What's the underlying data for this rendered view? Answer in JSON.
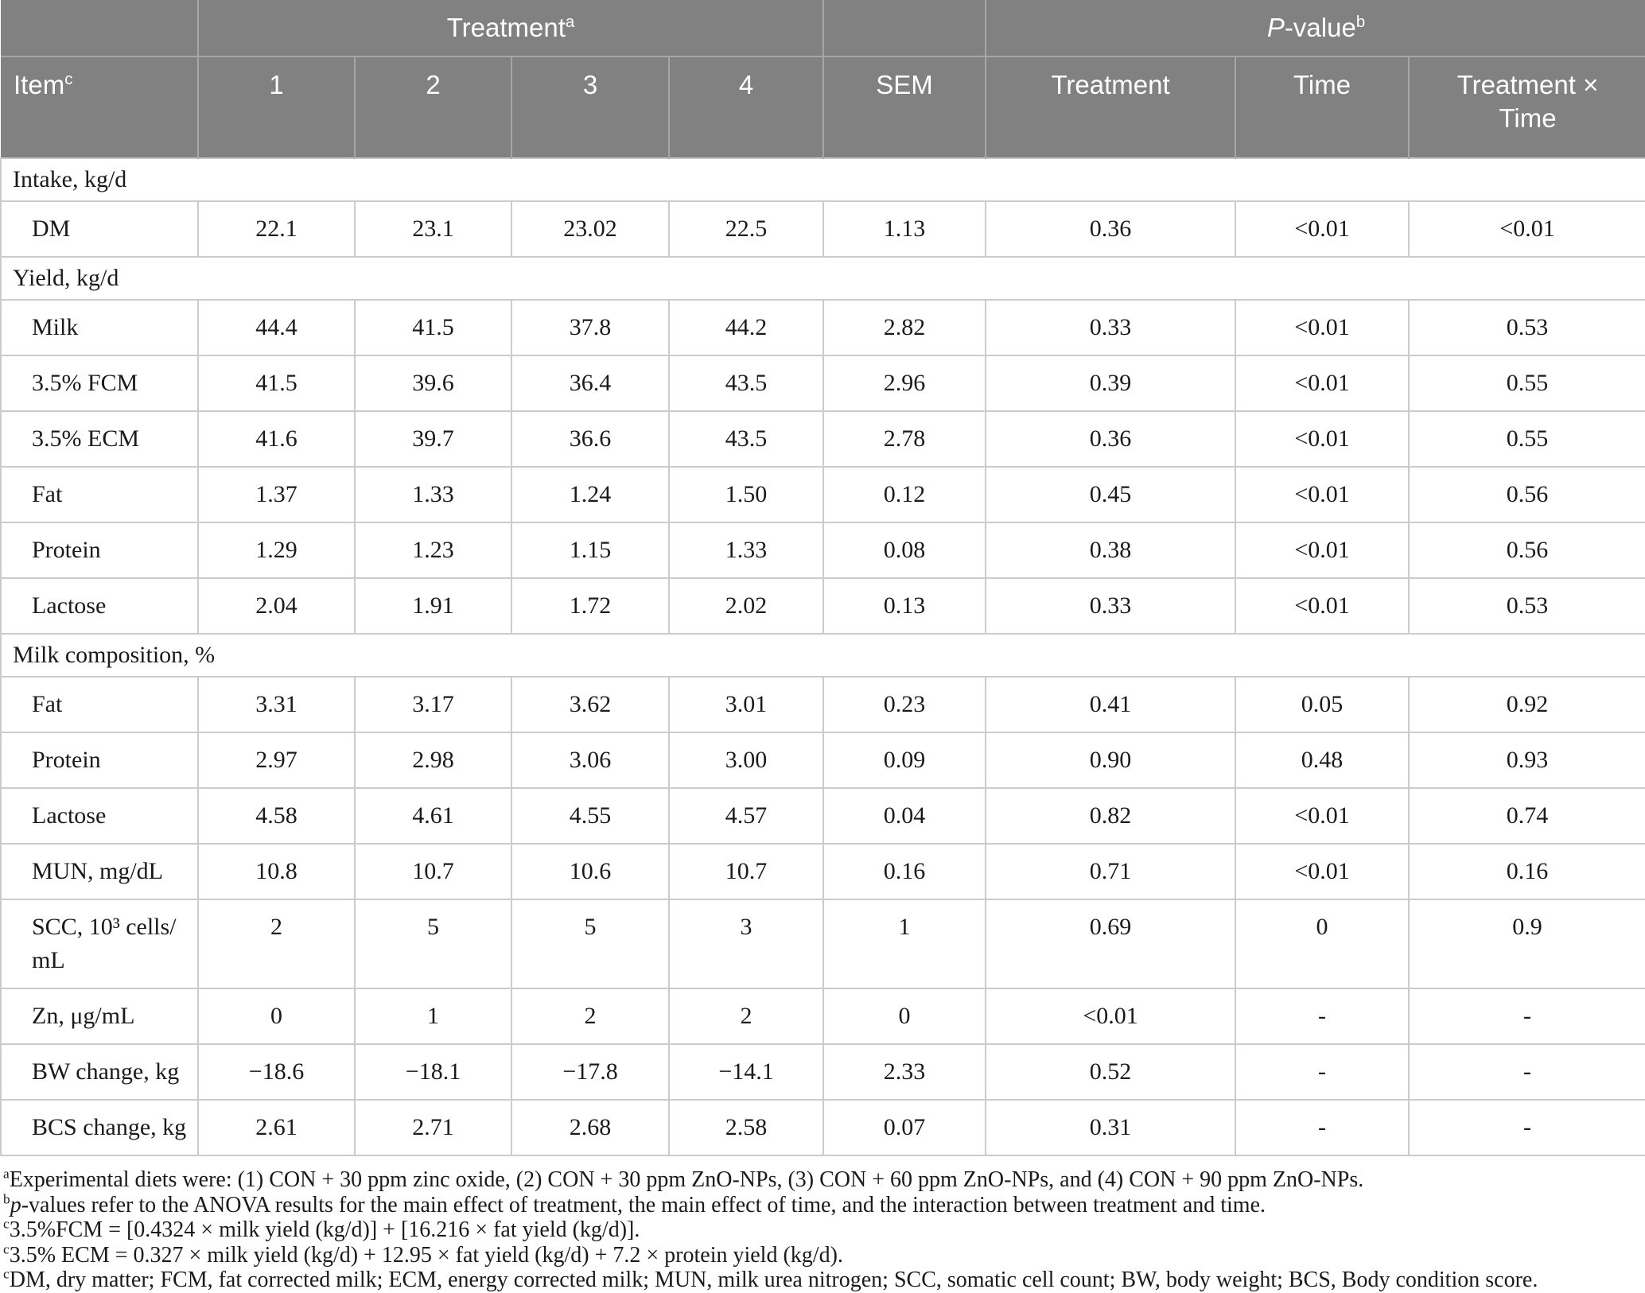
{
  "table": {
    "header": {
      "treatment_group": {
        "label": "Treatment",
        "sup": "a"
      },
      "pvalue_group": {
        "lead": "P",
        "label": "-value",
        "sup": "b"
      },
      "item": {
        "label": "Item",
        "sup": "c"
      },
      "treat_cols": [
        "1",
        "2",
        "3",
        "4"
      ],
      "sem": "SEM",
      "p_treatment": "Treatment",
      "p_time": "Time",
      "p_interaction": "Treatment × Time"
    },
    "rows": [
      {
        "type": "section",
        "label": "Intake, kg/d"
      },
      {
        "type": "data",
        "label": "DM",
        "values": [
          "22.1",
          "23.1",
          "23.02",
          "22.5",
          "1.13",
          "0.36",
          "<0.01",
          "<0.01"
        ]
      },
      {
        "type": "section",
        "label": "Yield, kg/d"
      },
      {
        "type": "data",
        "label": "Milk",
        "values": [
          "44.4",
          "41.5",
          "37.8",
          "44.2",
          "2.82",
          "0.33",
          "<0.01",
          "0.53"
        ]
      },
      {
        "type": "data",
        "label": "3.5% FCM",
        "values": [
          "41.5",
          "39.6",
          "36.4",
          "43.5",
          "2.96",
          "0.39",
          "<0.01",
          "0.55"
        ]
      },
      {
        "type": "data",
        "label": "3.5% ECM",
        "values": [
          "41.6",
          "39.7",
          "36.6",
          "43.5",
          "2.78",
          "0.36",
          "<0.01",
          "0.55"
        ]
      },
      {
        "type": "data",
        "label": "Fat",
        "values": [
          "1.37",
          "1.33",
          "1.24",
          "1.50",
          "0.12",
          "0.45",
          "<0.01",
          "0.56"
        ]
      },
      {
        "type": "data",
        "label": "Protein",
        "values": [
          "1.29",
          "1.23",
          "1.15",
          "1.33",
          "0.08",
          "0.38",
          "<0.01",
          "0.56"
        ]
      },
      {
        "type": "data",
        "label": "Lactose",
        "values": [
          "2.04",
          "1.91",
          "1.72",
          "2.02",
          "0.13",
          "0.33",
          "<0.01",
          "0.53"
        ]
      },
      {
        "type": "section",
        "label": "Milk composition, %"
      },
      {
        "type": "data",
        "label": "Fat",
        "values": [
          "3.31",
          "3.17",
          "3.62",
          "3.01",
          "0.23",
          "0.41",
          "0.05",
          "0.92"
        ]
      },
      {
        "type": "data",
        "label": "Protein",
        "values": [
          "2.97",
          "2.98",
          "3.06",
          "3.00",
          "0.09",
          "0.90",
          "0.48",
          "0.93"
        ]
      },
      {
        "type": "data",
        "label": "Lactose",
        "values": [
          "4.58",
          "4.61",
          "4.55",
          "4.57",
          "0.04",
          "0.82",
          "<0.01",
          "0.74"
        ]
      },
      {
        "type": "data",
        "label": "MUN, mg/dL",
        "values": [
          "10.8",
          "10.7",
          "10.6",
          "10.7",
          "0.16",
          "0.71",
          "<0.01",
          "0.16"
        ]
      },
      {
        "type": "data",
        "label": "SCC, 10³ cells/​mL",
        "values": [
          "2",
          "5",
          "5",
          "3",
          "1",
          "0.69",
          "0",
          "0.9"
        ]
      },
      {
        "type": "data",
        "label": "Zn, μg/mL",
        "values": [
          "0",
          "1",
          "2",
          "2",
          "0",
          "<0.01",
          "-",
          "-"
        ]
      },
      {
        "type": "data",
        "label": "BW change, kg",
        "values": [
          "−18.6",
          "−18.1",
          "−17.8",
          "−14.1",
          "2.33",
          "0.52",
          "-",
          "-"
        ]
      },
      {
        "type": "data",
        "label": "BCS change, kg",
        "values": [
          "2.61",
          "2.71",
          "2.68",
          "2.58",
          "0.07",
          "0.31",
          "-",
          "-"
        ]
      }
    ],
    "footnotes": [
      {
        "marker": "a",
        "text": "Experimental diets were: (1) CON + 30 ppm zinc oxide, (2) CON + 30 ppm ZnO-NPs, (3) CON + 60 ppm ZnO-NPs, and (4) CON + 90 ppm ZnO-NPs."
      },
      {
        "marker": "b",
        "lead_italic": "p",
        "text": "-values refer to the ANOVA results for the main effect of treatment, the main effect of time, and the interaction between treatment and time."
      },
      {
        "marker": "c",
        "text": "3.5%FCM = [0.4324 × milk yield (kg/d)] + [16.216 × fat yield (kg/d)]."
      },
      {
        "marker": "c",
        "text": "3.5% ECM = 0.327 × milk yield (kg/d) + 12.95 × fat yield (kg/d) + 7.2 × protein yield (kg/d)."
      },
      {
        "marker": "c",
        "text": "DM, dry matter; FCM, fat corrected milk; ECM, energy corrected milk; MUN, milk urea nitrogen; SCC, somatic cell count; BW, body weight; BCS, Body condition score."
      }
    ],
    "colors": {
      "header_bg": "#818181",
      "header_line": "#a6a6a6",
      "body_line": "#cbcbcb",
      "header_text": "#ffffff"
    }
  }
}
